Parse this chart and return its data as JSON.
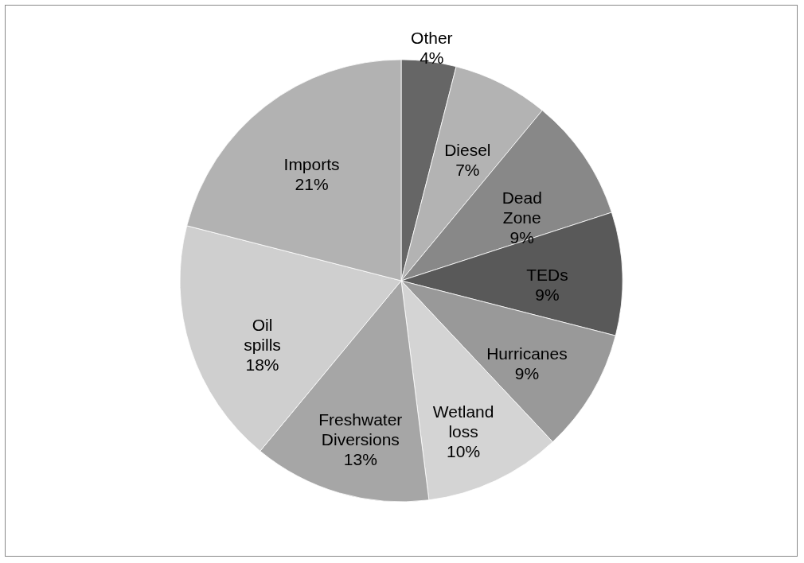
{
  "chart_data": {
    "type": "pie",
    "categories": [
      "Other",
      "Diesel",
      "Dead Zone",
      "TEDs",
      "Hurricanes",
      "Wetland loss",
      "Freshwater Diversions",
      "Oil spills",
      "Imports"
    ],
    "values": [
      4,
      7,
      9,
      9,
      9,
      10,
      13,
      18,
      21
    ],
    "value_labels": [
      "4%",
      "7%",
      "9%",
      "9%",
      "9%",
      "10%",
      "13%",
      "18%",
      "21%"
    ],
    "colors": [
      "#666666",
      "#b3b3b3",
      "#888888",
      "#595959",
      "#999999",
      "#d4d4d4",
      "#a6a6a6",
      "#cfcfcf",
      "#b2b2b2"
    ]
  }
}
